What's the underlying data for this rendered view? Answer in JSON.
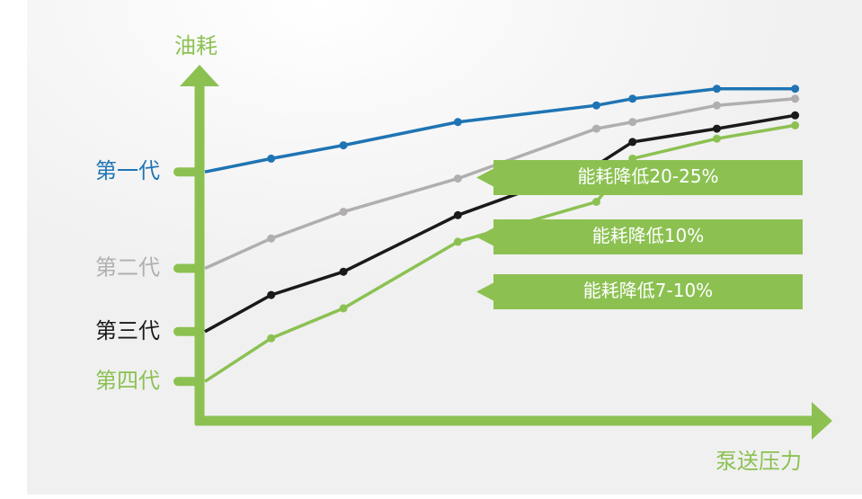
{
  "chart_data": {
    "type": "line",
    "x_label": "泵送压力",
    "y_label": "油耗",
    "x": [
      0,
      11,
      23,
      42,
      65,
      71,
      85,
      98
    ],
    "xlim": [
      0,
      100
    ],
    "ylim": [
      0,
      100
    ],
    "series": [
      {
        "name": "第一代",
        "color": "#1f74b4",
        "values": [
          74,
          78,
          82,
          89,
          94,
          96,
          99,
          99
        ]
      },
      {
        "name": "第二代",
        "color": "#b1aeaf",
        "values": [
          45,
          54,
          62,
          72,
          87,
          89,
          94,
          96
        ]
      },
      {
        "name": "第三代",
        "color": "#1a1a1a",
        "values": [
          26,
          37,
          44,
          61,
          76,
          83,
          87,
          91
        ]
      },
      {
        "name": "第四代",
        "color": "#8cc152",
        "values": [
          11,
          24,
          33,
          53,
          65,
          78,
          84,
          88
        ]
      }
    ],
    "annotations": [
      "能耗降低20-25%",
      "能耗降低10%",
      "能耗降低7-10%"
    ],
    "axis_color": "#8cc152"
  }
}
